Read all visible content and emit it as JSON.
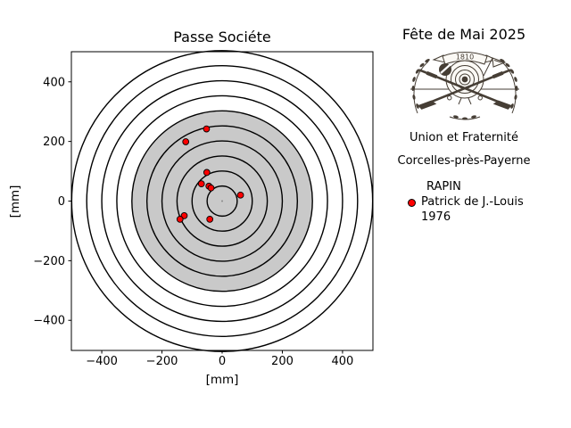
{
  "chart_data": {
    "type": "scatter",
    "title": "Passe Sociéte",
    "xlabel": "[mm]",
    "ylabel": "[mm]",
    "xlim": [
      -501,
      501
    ],
    "ylim": [
      -501,
      501
    ],
    "xticks": [
      -400,
      -200,
      0,
      200,
      400
    ],
    "yticks": [
      400,
      200,
      0,
      -200,
      -400
    ],
    "grid": false,
    "target_rings_mm": [
      50,
      100,
      150,
      200,
      250,
      300,
      350,
      400,
      450,
      500
    ],
    "gray_zone_radius_mm": 300,
    "gray_zone_color": "#c9c9c9",
    "ring_color": "#000000",
    "shot_color": "#ff0000",
    "shot_edge_color": "#000000",
    "series": [
      {
        "name": "Patrick de J.-Louis 1976",
        "points": [
          [
            -52,
            242
          ],
          [
            -121,
            199
          ],
          [
            -51,
            96
          ],
          [
            -69,
            58
          ],
          [
            -44,
            50
          ],
          [
            -37,
            44
          ],
          [
            61,
            20
          ],
          [
            -126,
            -49
          ],
          [
            -140,
            -61
          ],
          [
            -41,
            -61
          ]
        ]
      }
    ]
  },
  "axis": {
    "tick_labels_x": [
      "−400",
      "−200",
      "0",
      "200",
      "400"
    ],
    "tick_labels_y": [
      "400",
      "200",
      "0",
      "−200",
      "−400"
    ]
  },
  "panel": {
    "event_title": "Fête de Mai 2025",
    "emblem_year": "1810",
    "society_name": "Union et Fraternité",
    "society_place": "Corcelles-près-Payerne",
    "legend": {
      "title": "RAPIN",
      "entry_name": "Patrick de J.-Louis",
      "entry_year": "1976"
    }
  }
}
